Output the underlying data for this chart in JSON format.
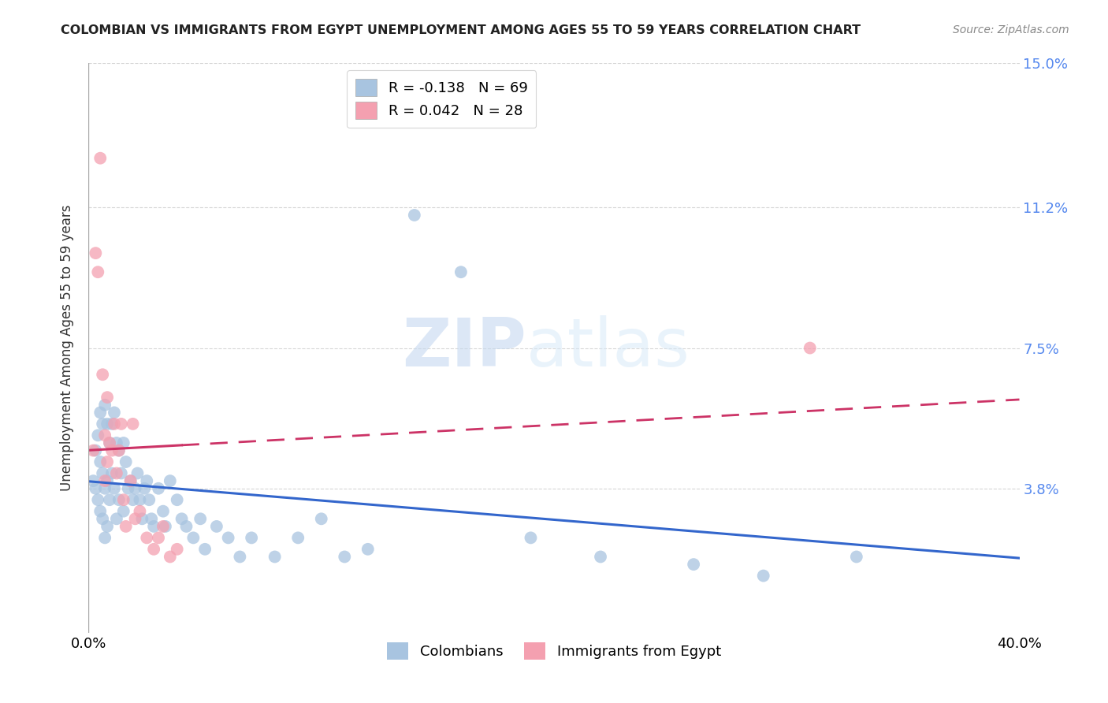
{
  "title": "COLOMBIAN VS IMMIGRANTS FROM EGYPT UNEMPLOYMENT AMONG AGES 55 TO 59 YEARS CORRELATION CHART",
  "source": "Source: ZipAtlas.com",
  "ylabel": "Unemployment Among Ages 55 to 59 years",
  "xlim": [
    0.0,
    0.4
  ],
  "ylim": [
    0.0,
    0.15
  ],
  "yticks": [
    0.0,
    0.038,
    0.075,
    0.112,
    0.15
  ],
  "ytick_labels": [
    "",
    "3.8%",
    "7.5%",
    "11.2%",
    "15.0%"
  ],
  "xtick_labels": [
    "0.0%",
    "",
    "",
    "",
    "40.0%"
  ],
  "xticks": [
    0.0,
    0.1,
    0.2,
    0.3,
    0.4
  ],
  "grid_color": "#cccccc",
  "background_color": "#ffffff",
  "colombians_color": "#a8c4e0",
  "egyptians_color": "#f4a0b0",
  "colombians_line_color": "#3366cc",
  "egyptians_line_color": "#cc3366",
  "R_colombians": -0.138,
  "N_colombians": 69,
  "R_egyptians": 0.042,
  "N_egyptians": 28,
  "watermark_zip": "ZIP",
  "watermark_atlas": "atlas",
  "colombians_x": [
    0.002,
    0.003,
    0.003,
    0.004,
    0.004,
    0.005,
    0.005,
    0.005,
    0.006,
    0.006,
    0.006,
    0.007,
    0.007,
    0.007,
    0.008,
    0.008,
    0.008,
    0.009,
    0.009,
    0.01,
    0.01,
    0.011,
    0.011,
    0.012,
    0.012,
    0.013,
    0.013,
    0.014,
    0.015,
    0.015,
    0.016,
    0.017,
    0.018,
    0.019,
    0.02,
    0.021,
    0.022,
    0.023,
    0.024,
    0.025,
    0.026,
    0.027,
    0.028,
    0.03,
    0.032,
    0.033,
    0.035,
    0.038,
    0.04,
    0.042,
    0.045,
    0.048,
    0.05,
    0.055,
    0.06,
    0.065,
    0.07,
    0.08,
    0.09,
    0.1,
    0.11,
    0.12,
    0.14,
    0.16,
    0.19,
    0.22,
    0.26,
    0.29,
    0.33
  ],
  "colombians_y": [
    0.04,
    0.048,
    0.038,
    0.052,
    0.035,
    0.058,
    0.045,
    0.032,
    0.055,
    0.042,
    0.03,
    0.06,
    0.038,
    0.025,
    0.055,
    0.04,
    0.028,
    0.05,
    0.035,
    0.055,
    0.042,
    0.058,
    0.038,
    0.05,
    0.03,
    0.048,
    0.035,
    0.042,
    0.05,
    0.032,
    0.045,
    0.038,
    0.04,
    0.035,
    0.038,
    0.042,
    0.035,
    0.03,
    0.038,
    0.04,
    0.035,
    0.03,
    0.028,
    0.038,
    0.032,
    0.028,
    0.04,
    0.035,
    0.03,
    0.028,
    0.025,
    0.03,
    0.022,
    0.028,
    0.025,
    0.02,
    0.025,
    0.02,
    0.025,
    0.03,
    0.02,
    0.022,
    0.11,
    0.095,
    0.025,
    0.02,
    0.018,
    0.015,
    0.02
  ],
  "egyptians_x": [
    0.002,
    0.003,
    0.004,
    0.005,
    0.006,
    0.007,
    0.007,
    0.008,
    0.008,
    0.009,
    0.01,
    0.011,
    0.012,
    0.013,
    0.014,
    0.015,
    0.016,
    0.018,
    0.019,
    0.02,
    0.022,
    0.025,
    0.028,
    0.03,
    0.032,
    0.035,
    0.038,
    0.31
  ],
  "egyptians_y": [
    0.048,
    0.1,
    0.095,
    0.125,
    0.068,
    0.052,
    0.04,
    0.062,
    0.045,
    0.05,
    0.048,
    0.055,
    0.042,
    0.048,
    0.055,
    0.035,
    0.028,
    0.04,
    0.055,
    0.03,
    0.032,
    0.025,
    0.022,
    0.025,
    0.028,
    0.02,
    0.022,
    0.075
  ]
}
